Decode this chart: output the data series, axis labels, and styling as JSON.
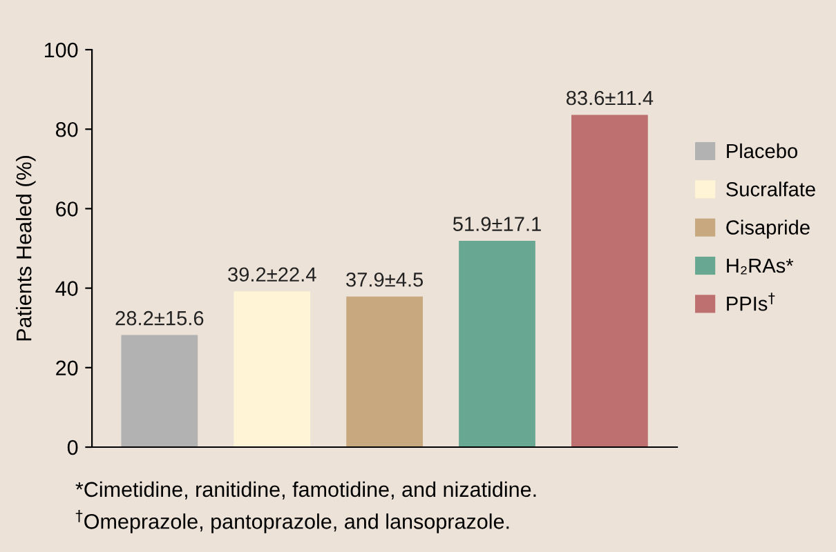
{
  "chart_data": {
    "type": "bar",
    "ylabel": "Patients Healed (%)",
    "categories": [
      null,
      null,
      null,
      null,
      null
    ],
    "series": [
      {
        "name": "Placebo",
        "color": "#b3b2b2",
        "values": [
          28.2,
          null,
          null,
          null,
          null
        ],
        "value_labels": [
          "28.2±15.6",
          null,
          null,
          null,
          null
        ]
      },
      {
        "name": "Sucralfate",
        "color": "#fff5d6",
        "values": [
          null,
          39.2,
          null,
          null,
          null
        ],
        "value_labels": [
          null,
          "39.2±22.4",
          null,
          null,
          null
        ]
      },
      {
        "name": "Cisapride",
        "color": "#c8a87e",
        "values": [
          null,
          null,
          37.9,
          null,
          null
        ],
        "value_labels": [
          null,
          null,
          "37.9±4.5",
          null,
          null
        ]
      },
      {
        "name": "H₂RAs*",
        "color": "#68a892",
        "values": [
          null,
          null,
          null,
          51.9,
          null
        ],
        "value_labels": [
          null,
          null,
          null,
          "51.9±17.1",
          null
        ]
      },
      {
        "name": "PPIs$^{†}$",
        "color": "#be6f6f",
        "values": [
          null,
          null,
          null,
          null,
          83.6
        ],
        "value_labels": [
          null,
          null,
          null,
          null,
          "83.6±11.4"
        ]
      }
    ],
    "ylim": [
      0,
      100
    ],
    "yticks": [
      0,
      20,
      40,
      60,
      80,
      100
    ],
    "grid": false,
    "legend": "right",
    "annotations": [
      "*Cimetidine, ranitidine, famotidine, and nizatidine.",
      "$^{†}$Omeprazole, pantoprazole, and lansoprazole."
    ]
  }
}
